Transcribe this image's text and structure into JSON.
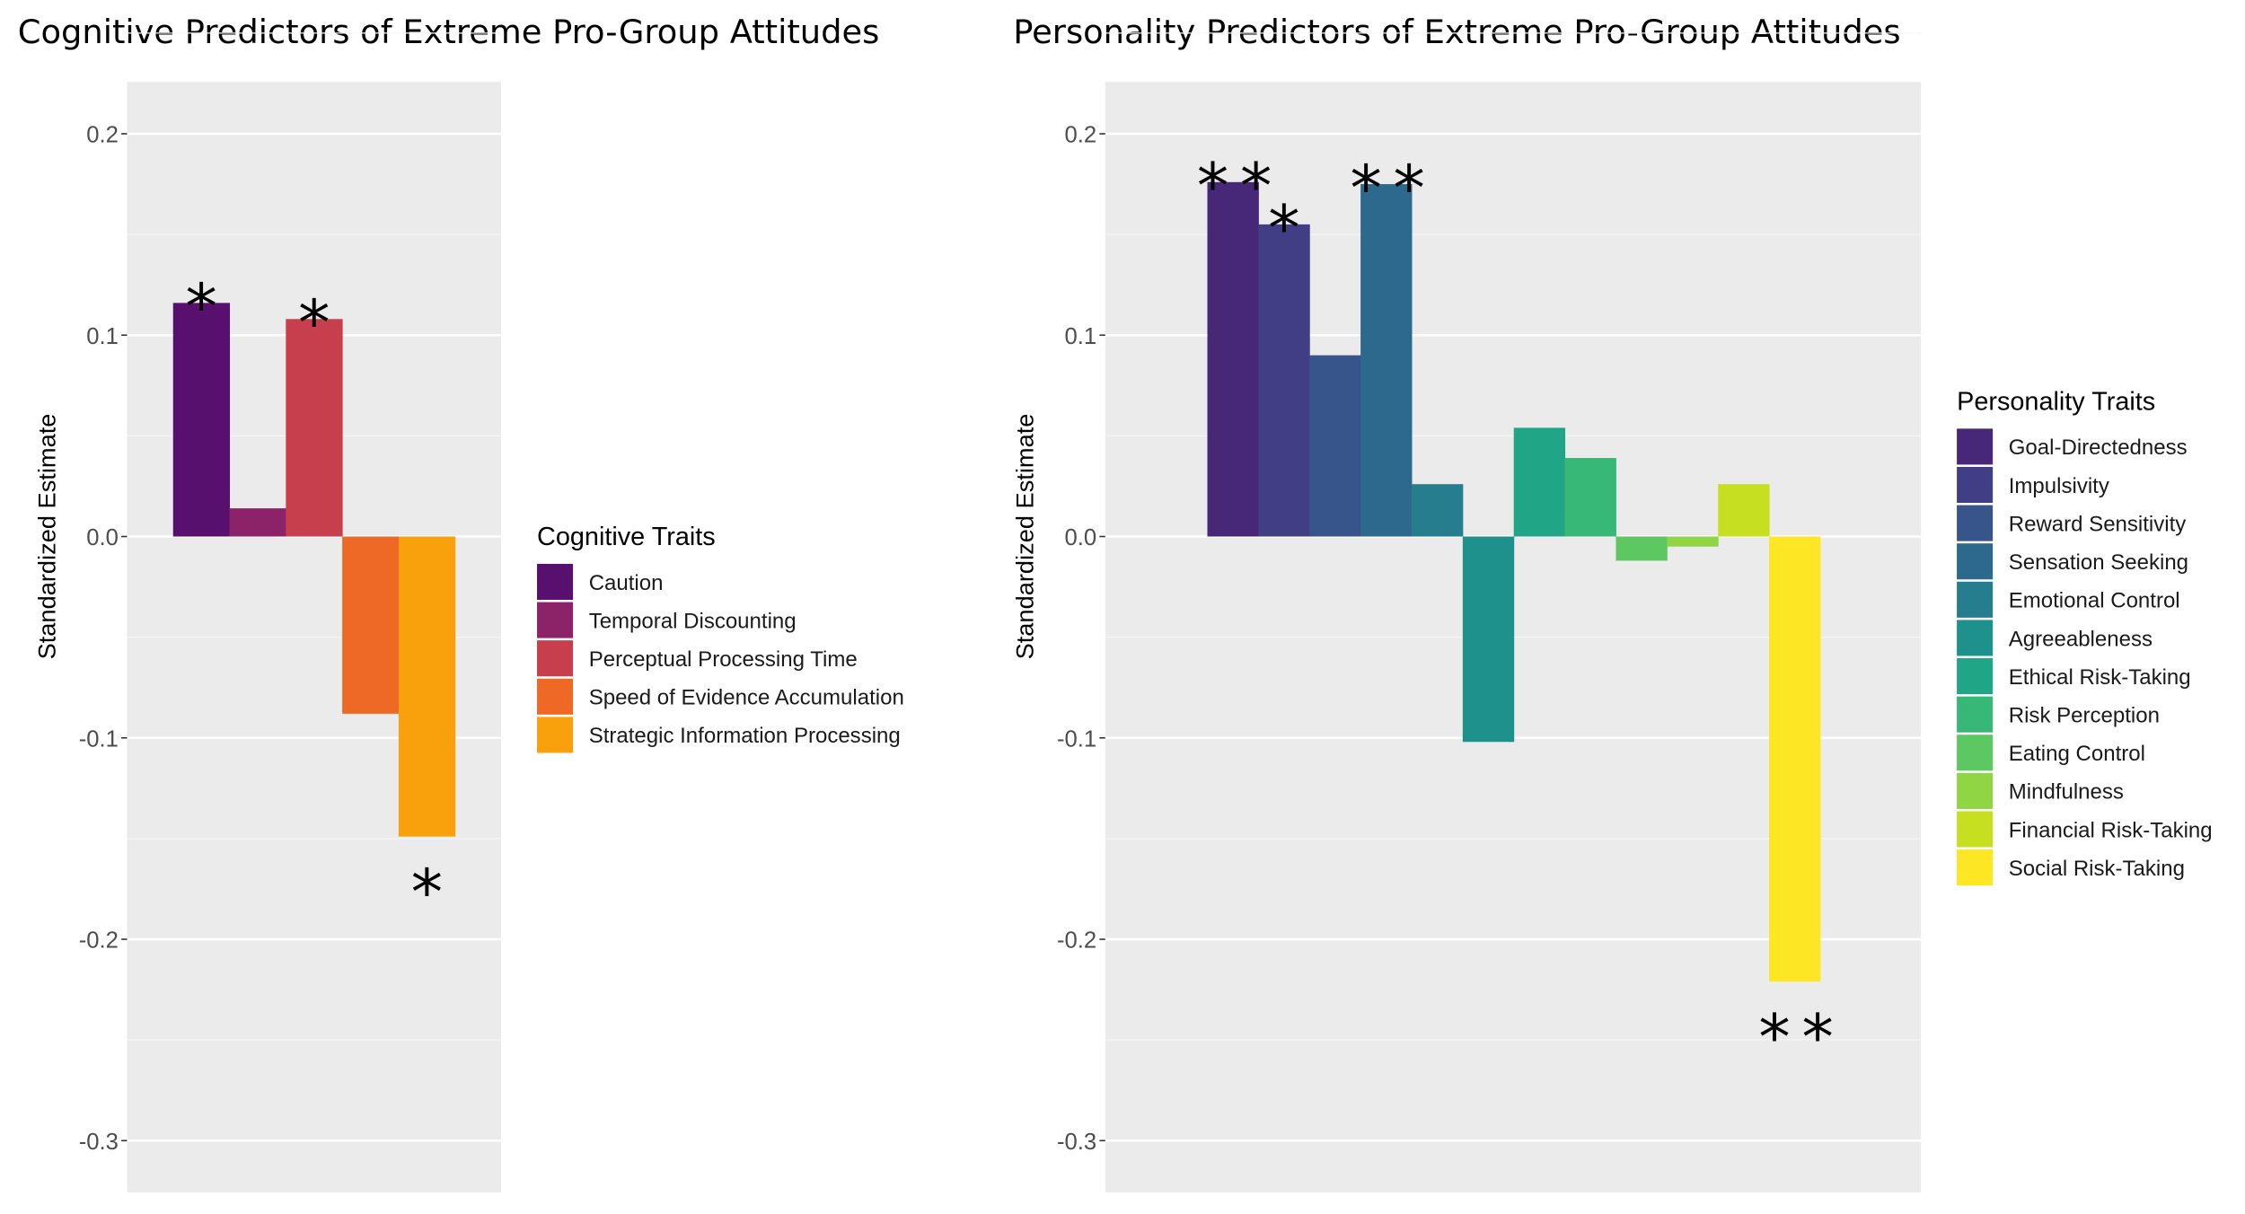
{
  "chart_data": [
    {
      "type": "bar",
      "title": "Cognitive Predictors of Extreme Pro-Group Attitudes",
      "ylabel": "Standardized Estimate",
      "xlabel": "",
      "ylim": [
        -0.32,
        0.225
      ],
      "yticks": [
        0.2,
        0.1,
        0.0,
        -0.1,
        -0.2,
        -0.3
      ],
      "ytick_labels": [
        "0.2",
        "0.1",
        "0.0",
        "-0.1",
        "-0.2",
        "-0.3"
      ],
      "grid": true,
      "legend_title": "Cognitive Traits",
      "legend_position": "right",
      "categories": [
        "Caution",
        "Temporal Discounting",
        "Perceptual Processing Time",
        "Speed of Evidence Accumulation",
        "Strategic Information Processing"
      ],
      "values": [
        0.116,
        0.014,
        0.108,
        -0.088,
        -0.149
      ],
      "significance": [
        "*",
        "",
        "*",
        "",
        "*"
      ],
      "colors": [
        "#57106e",
        "#8c2369",
        "#c73e4c",
        "#ed6925",
        "#f9a10d"
      ]
    },
    {
      "type": "bar",
      "title": "Personality Predictors of Extreme Pro-Group Attitudes",
      "ylabel": "Standardized Estimate",
      "xlabel": "",
      "ylim": [
        -0.32,
        0.225
      ],
      "yticks": [
        0.2,
        0.1,
        0.0,
        -0.1,
        -0.2,
        -0.3
      ],
      "ytick_labels": [
        "0.2",
        "0.1",
        "0.0",
        "-0.1",
        "-0.2",
        "-0.3"
      ],
      "grid": true,
      "legend_title": "Personality Traits",
      "legend_position": "right",
      "categories": [
        "Goal-Directedness",
        "Impulsivity",
        "Reward Sensitivity",
        "Sensation Seeking",
        "Emotional Control",
        "Agreeableness",
        "Ethical Risk-Taking",
        "Risk Perception",
        "Eating Control",
        "Mindfulness",
        "Financial Risk-Taking",
        "Social Risk-Taking"
      ],
      "values": [
        0.176,
        0.155,
        0.09,
        0.175,
        0.026,
        -0.102,
        0.054,
        0.039,
        -0.012,
        -0.005,
        0.026,
        -0.221
      ],
      "significance": [
        "**",
        "*",
        "",
        "**",
        "",
        "",
        "",
        "",
        "",
        "",
        "",
        "**"
      ],
      "colors": [
        "#472777",
        "#423e85",
        "#37548b",
        "#2c698d",
        "#257d8d",
        "#1f918c",
        "#20a586",
        "#37b877",
        "#5dc762",
        "#8fd544",
        "#c6e021",
        "#fde725"
      ]
    }
  ]
}
